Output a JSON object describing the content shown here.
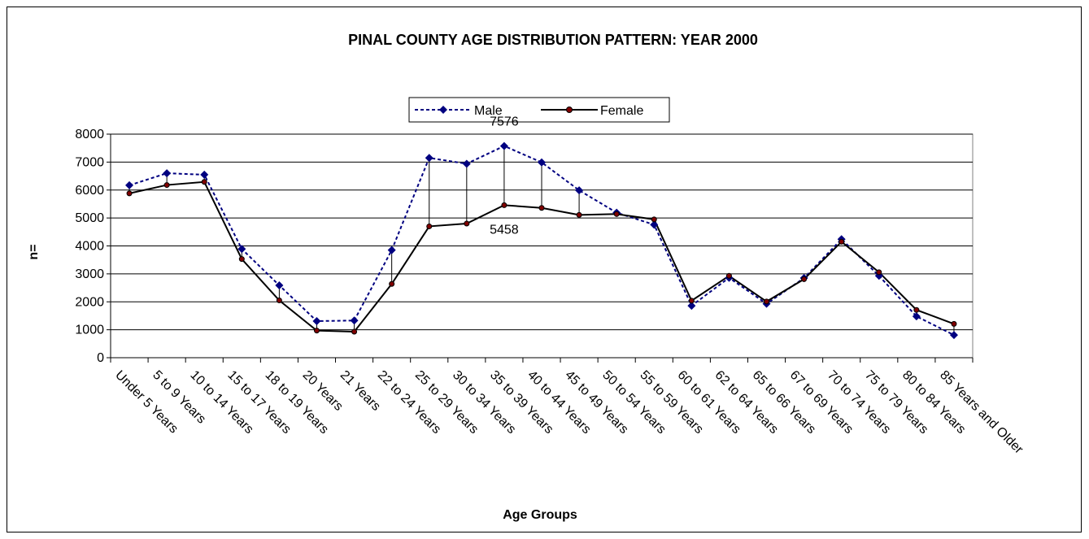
{
  "chart_data": {
    "type": "line",
    "title": "PINAL COUNTY AGE DISTRIBUTION PATTERN: YEAR 2000",
    "xlabel": "Age Groups",
    "ylabel": "n=",
    "ylim": [
      0,
      8000
    ],
    "yticks": [
      0,
      1000,
      2000,
      3000,
      4000,
      5000,
      6000,
      7000,
      8000
    ],
    "grid": true,
    "legend_position": "top-center",
    "categories": [
      "Under 5 Years",
      "5 to 9 Years",
      "10 to 14 Years",
      "15 to 17 Years",
      "18 to 19 Years",
      "20 Years",
      "21 Years",
      "22 to 24 Years",
      "25 to 29 Years",
      "30 to 34 Years",
      "35 to 39 Years",
      "40 to 44 Years",
      "45 to 49 Years",
      "50 to 54 Years",
      "55 to 59 Years",
      "60 to 61 Years",
      "62 to 64 Years",
      "65 to 66 Years",
      "67 to 69 Years",
      "70 to 74 Years",
      "75 to 79 Years",
      "80 to 84 Years",
      "85 Years and Older"
    ],
    "series": [
      {
        "name": "Male",
        "color": "#000080",
        "style": "dashed",
        "marker": "diamond",
        "values": [
          6170,
          6600,
          6550,
          3890,
          2590,
          1310,
          1330,
          3850,
          7150,
          6940,
          7576,
          6990,
          5990,
          5190,
          4760,
          1860,
          2860,
          1930,
          2850,
          4240,
          2930,
          1480,
          810
        ]
      },
      {
        "name": "Female",
        "color": "#000000",
        "style": "solid",
        "marker": "circle",
        "values": [
          5880,
          6180,
          6290,
          3530,
          2050,
          970,
          930,
          2640,
          4700,
          4800,
          5458,
          5360,
          5110,
          5140,
          4950,
          2040,
          2930,
          2010,
          2810,
          4150,
          3060,
          1710,
          1210
        ]
      }
    ],
    "annotations": [
      "7576",
      "5458"
    ]
  }
}
